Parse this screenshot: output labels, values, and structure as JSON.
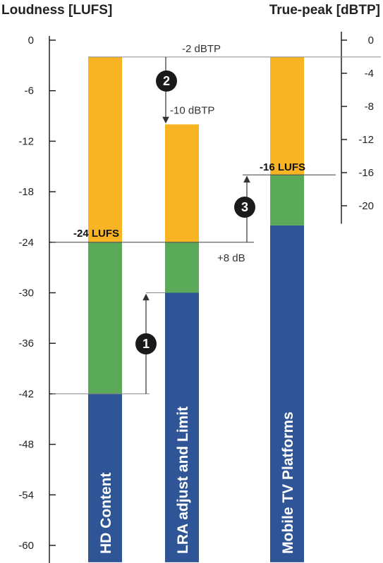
{
  "chart_data": {
    "type": "bar",
    "layout": "stacked",
    "left_axis": {
      "label": "Loudness [LUFS]",
      "ticks": [
        0,
        -6,
        -12,
        -18,
        -24,
        -30,
        -36,
        -42,
        -48,
        -54,
        -60
      ],
      "range": [
        -62,
        0
      ]
    },
    "right_axis": {
      "label": "True-peak [dBTP]",
      "ticks": [
        0,
        -4,
        -8,
        -12,
        -16,
        -20
      ],
      "range": [
        -22,
        0
      ]
    },
    "categories": [
      "HD Content",
      "LRA adjust and Limit",
      "Mobile TV Platforms"
    ],
    "series": [
      {
        "segment": "blue",
        "color": "#2f5597",
        "bottom": [
          -62,
          -62,
          -62
        ],
        "top": [
          -42,
          -30,
          -22
        ]
      },
      {
        "segment": "green",
        "color": "#5aaa5a",
        "bottom": [
          -42,
          -30,
          -22
        ],
        "top": [
          -24,
          -24,
          -16
        ]
      },
      {
        "segment": "orange",
        "color": "#f8b422",
        "bottom": [
          -24,
          -24,
          -16
        ],
        "top": [
          -2,
          -10,
          -2
        ]
      }
    ],
    "annotations": {
      "lufs_24": "-24 LUFS",
      "lufs_16": "-16 LUFS",
      "dbtp_2": "-2 dBTP",
      "dbtp_10": "-10 dBTP",
      "gain": "+8 dB",
      "steps": [
        "1",
        "2",
        "3"
      ]
    },
    "colors": {
      "blue": "#2f5597",
      "green": "#5aaa5a",
      "orange": "#f8b422",
      "marker": "#1a1a1a"
    }
  }
}
